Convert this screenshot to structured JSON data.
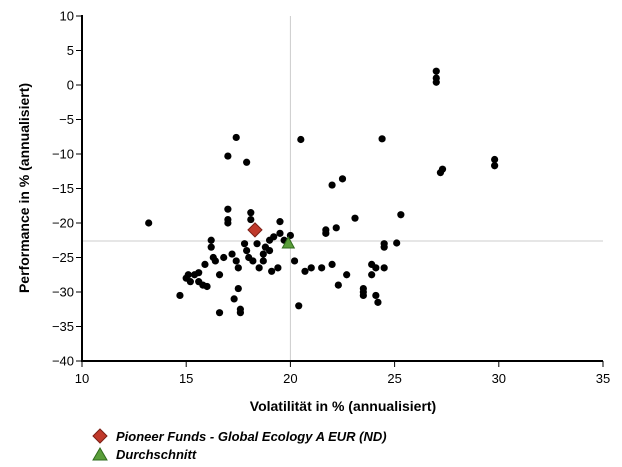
{
  "chart_data": {
    "type": "scatter",
    "title": "",
    "xlabel": "Volatilität in % (annualisiert)",
    "ylabel": "Performance in % (annualisiert)",
    "xlim": [
      10,
      35
    ],
    "ylim": [
      -40,
      10
    ],
    "xticks": [
      "10",
      "15",
      "20",
      "25",
      "30",
      "35"
    ],
    "yticks": [
      "10",
      "5",
      "0",
      "−5",
      "−10",
      "−15",
      "−20",
      "−25",
      "−30",
      "−35",
      "−40"
    ],
    "grid": false,
    "crosshair": {
      "x": 20.0,
      "y": -22.6,
      "color": "#cccccc"
    },
    "legend_position": "bottom-left",
    "series": [
      {
        "name": "",
        "color": "#000000",
        "marker": "circle",
        "points": [
          [
            13.2,
            -20.0
          ],
          [
            14.7,
            -30.5
          ],
          [
            15.0,
            -28.0
          ],
          [
            15.1,
            -27.5
          ],
          [
            15.2,
            -28.5
          ],
          [
            15.4,
            -27.5
          ],
          [
            15.6,
            -27.2
          ],
          [
            15.6,
            -28.5
          ],
          [
            15.8,
            -29.0
          ],
          [
            15.9,
            -26.0
          ],
          [
            16.0,
            -29.2
          ],
          [
            16.2,
            -22.5
          ],
          [
            16.2,
            -23.5
          ],
          [
            16.3,
            -25.0
          ],
          [
            16.4,
            -25.5
          ],
          [
            16.6,
            -27.5
          ],
          [
            16.6,
            -33.0
          ],
          [
            16.8,
            -25.0
          ],
          [
            17.0,
            -20.0
          ],
          [
            17.0,
            -19.5
          ],
          [
            17.0,
            -18.0
          ],
          [
            17.0,
            -10.3
          ],
          [
            17.2,
            -24.5
          ],
          [
            17.3,
            -31.0
          ],
          [
            17.4,
            -7.6
          ],
          [
            17.4,
            -25.5
          ],
          [
            17.5,
            -26.5
          ],
          [
            17.5,
            -29.5
          ],
          [
            17.6,
            -32.5
          ],
          [
            17.6,
            -33.0
          ],
          [
            17.8,
            -23.0
          ],
          [
            17.9,
            -11.2
          ],
          [
            17.9,
            -24.0
          ],
          [
            18.0,
            -25.0
          ],
          [
            18.1,
            -18.5
          ],
          [
            18.1,
            -19.5
          ],
          [
            18.2,
            -25.5
          ],
          [
            18.4,
            -23.0
          ],
          [
            18.5,
            -26.5
          ],
          [
            18.7,
            -24.5
          ],
          [
            18.7,
            -25.5
          ],
          [
            18.8,
            -23.5
          ],
          [
            19.0,
            -22.5
          ],
          [
            19.0,
            -24.0
          ],
          [
            19.1,
            -27.0
          ],
          [
            19.2,
            -22.0
          ],
          [
            19.4,
            -26.5
          ],
          [
            19.5,
            -21.5
          ],
          [
            19.5,
            -19.8
          ],
          [
            19.7,
            -22.5
          ],
          [
            20.0,
            -21.8
          ],
          [
            20.2,
            -25.5
          ],
          [
            20.4,
            -32.0
          ],
          [
            20.5,
            -7.9
          ],
          [
            20.7,
            -27.0
          ],
          [
            21.0,
            -26.5
          ],
          [
            21.5,
            -26.5
          ],
          [
            21.7,
            -21.5
          ],
          [
            21.7,
            -21.0
          ],
          [
            22.0,
            -14.5
          ],
          [
            22.0,
            -26.0
          ],
          [
            22.2,
            -20.7
          ],
          [
            22.3,
            -29.0
          ],
          [
            22.5,
            -13.6
          ],
          [
            22.7,
            -27.5
          ],
          [
            23.1,
            -19.3
          ],
          [
            23.5,
            -29.5
          ],
          [
            23.5,
            -30.0
          ],
          [
            23.5,
            -30.5
          ],
          [
            23.9,
            -26.0
          ],
          [
            23.9,
            -27.5
          ],
          [
            24.1,
            -26.5
          ],
          [
            24.1,
            -30.5
          ],
          [
            24.2,
            -31.5
          ],
          [
            24.4,
            -7.8
          ],
          [
            24.5,
            -26.5
          ],
          [
            24.5,
            -23.0
          ],
          [
            24.5,
            -23.5
          ],
          [
            25.1,
            -22.9
          ],
          [
            25.3,
            -18.8
          ],
          [
            27.0,
            2.0
          ],
          [
            27.0,
            1.0
          ],
          [
            27.0,
            0.4
          ],
          [
            27.2,
            -12.7
          ],
          [
            27.3,
            -12.2
          ],
          [
            29.8,
            -10.8
          ],
          [
            29.8,
            -11.7
          ]
        ]
      },
      {
        "name": "Pioneer Funds - Global Ecology A EUR (ND)",
        "color": "#c0392b",
        "marker": "diamond",
        "points": [
          [
            18.3,
            -21.0
          ]
        ]
      },
      {
        "name": "Durchschnitt",
        "color": "#5a9e3a",
        "marker": "triangle",
        "points": [
          [
            19.9,
            -22.9
          ]
        ]
      }
    ]
  }
}
